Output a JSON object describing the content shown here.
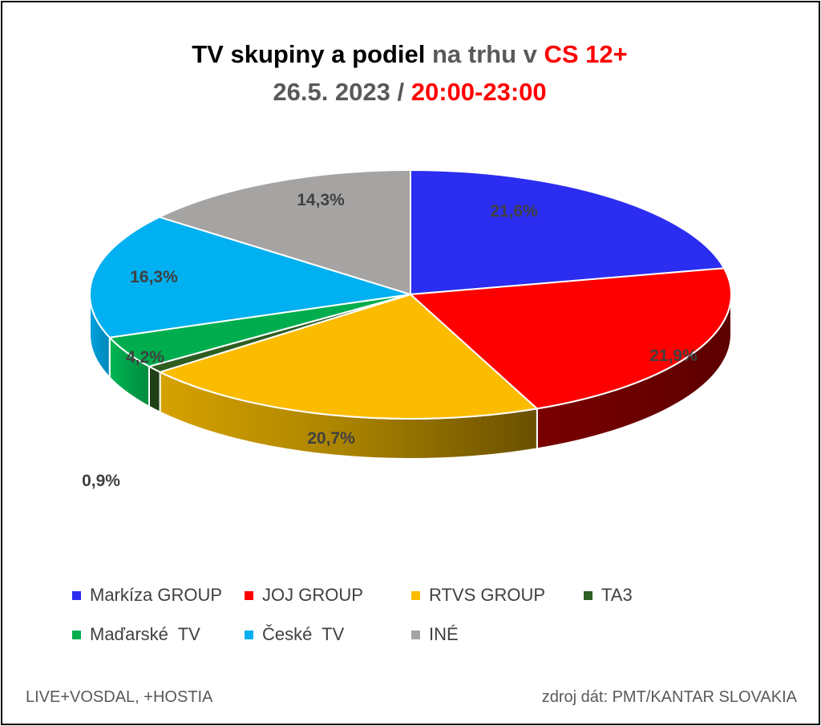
{
  "title": {
    "line1": [
      {
        "text": "TV skupiny a podiel ",
        "color": "#000000"
      },
      {
        "text": "na trhu v ",
        "color": "#595959"
      },
      {
        "text": "CS 12+",
        "color": "#ff0000"
      }
    ],
    "line2": [
      {
        "text": "26.5. 2023 / ",
        "color": "#595959"
      },
      {
        "text": "20:00-23:00",
        "color": "#ff0000"
      }
    ]
  },
  "chart_data": {
    "type": "pie",
    "style": "3d",
    "series": [
      {
        "name": "Markíza GROUP",
        "value": 21.6,
        "label": "21,6%",
        "color": "#2b2df0"
      },
      {
        "name": "JOJ GROUP",
        "value": 21.9,
        "label": "21,9%",
        "color": "#ff0000"
      },
      {
        "name": "RTVS GROUP",
        "value": 20.7,
        "label": "20,7%",
        "color": "#fbbc00"
      },
      {
        "name": "TA3",
        "value": 0.9,
        "label": "0,9%",
        "color": "#2e5e22"
      },
      {
        "name": "Maďarské  TV",
        "value": 4.2,
        "label": "4,2%",
        "color": "#00ad4e"
      },
      {
        "name": "České  TV",
        "value": 16.3,
        "label": "16,3%",
        "color": "#00b0f0"
      },
      {
        "name": "INÉ",
        "value": 14.3,
        "label": "14,3%",
        "color": "#a6a3a3"
      }
    ],
    "legend_position": "bottom"
  },
  "footer": {
    "left": "LIVE+VOSDAL, +HOSTIA",
    "right": "zdroj dát: PMT/KANTAR SLOVAKIA"
  }
}
